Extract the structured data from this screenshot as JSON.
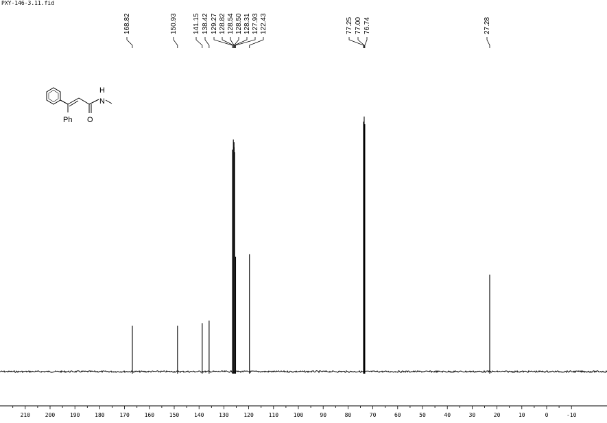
{
  "file_name": "PXY-146-3.11.fid",
  "structure_labels": {
    "ph": "Ph",
    "o": "O",
    "n": "N",
    "h": "H"
  },
  "chart_data": {
    "type": "line",
    "title": "",
    "xlabel": "",
    "ylabel": "",
    "x_unit": "ppm",
    "xlim": [
      215,
      -14
    ],
    "x_reversed": true,
    "grid": false,
    "x_ticks": [
      210,
      200,
      190,
      180,
      170,
      160,
      150,
      140,
      130,
      120,
      110,
      100,
      90,
      80,
      70,
      60,
      50,
      40,
      30,
      20,
      10,
      0,
      -10
    ],
    "peaks": [
      {
        "ppm": 168.82,
        "label": "168.82",
        "intensity": 0.18
      },
      {
        "ppm": 150.93,
        "label": "150.93",
        "intensity": 0.18
      },
      {
        "ppm": 141.15,
        "label": "141.15",
        "intensity": 0.19
      },
      {
        "ppm": 138.42,
        "label": "138.42",
        "intensity": 0.2
      },
      {
        "ppm": 129.27,
        "label": "129.27",
        "intensity": 0.87
      },
      {
        "ppm": 128.82,
        "label": "128.82",
        "intensity": 0.91
      },
      {
        "ppm": 128.54,
        "label": "128.54",
        "intensity": 0.9
      },
      {
        "ppm": 128.5,
        "label": "128.50",
        "intensity": 0.88
      },
      {
        "ppm": 128.31,
        "label": "128.31",
        "intensity": 0.86
      },
      {
        "ppm": 127.93,
        "label": "127.93",
        "intensity": 0.45
      },
      {
        "ppm": 122.43,
        "label": "122.43",
        "intensity": 0.46
      },
      {
        "ppm": 77.25,
        "label": "77.25",
        "intensity": 0.98
      },
      {
        "ppm": 77.0,
        "label": "77.00",
        "intensity": 1.0
      },
      {
        "ppm": 76.74,
        "label": "76.74",
        "intensity": 0.97
      },
      {
        "ppm": 27.28,
        "label": "27.28",
        "intensity": 0.38
      }
    ],
    "colors": {
      "trace": "#000000"
    }
  }
}
